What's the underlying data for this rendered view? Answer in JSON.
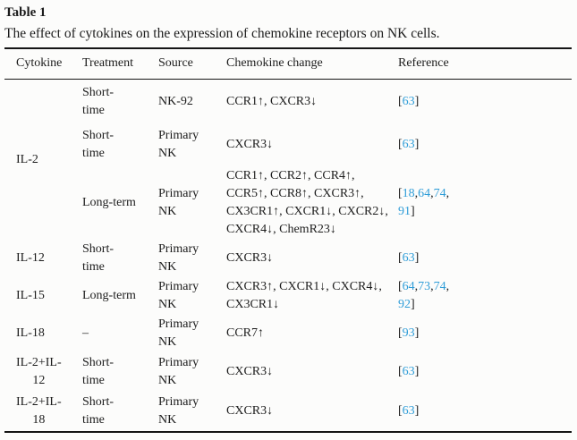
{
  "colors": {
    "text": "#1c1c1c",
    "citation_link": "#2f9dd8",
    "rule": "#151515",
    "background": "#fcfcfb"
  },
  "table": {
    "label": "Table 1",
    "caption": "The effect of cytokines on the expression of chemokine receptors on NK cells.",
    "columns": [
      "Cytokine",
      "Treatment",
      "Source",
      "Chemokine change",
      "Reference"
    ],
    "rows": [
      {
        "cytokine": "IL-2",
        "treatment": "Short-\ntime",
        "source": "NK-92",
        "change": "CCR1↑, CXCR3↓",
        "ref_lines": [
          [
            "63"
          ]
        ]
      },
      {
        "treatment": "Short-\ntime",
        "source": "Primary\nNK",
        "change": "CXCR3↓",
        "ref_lines": [
          [
            "63"
          ]
        ]
      },
      {
        "treatment": "Long-term",
        "source": "Primary\nNK",
        "change": "CCR1↑, CCR2↑, CCR4↑,\nCCR5↑, CCR8↑, CXCR3↑,\nCX3CR1↑, CXCR1↓, CXCR2↓,\nCXCR4↓, ChemR23↓",
        "ref_lines": [
          [
            "18",
            "64",
            "74"
          ],
          [
            "91"
          ]
        ]
      },
      {
        "cytokine": "IL-12",
        "treatment": "Short-\ntime",
        "source": "Primary\nNK",
        "change": "CXCR3↓",
        "ref_lines": [
          [
            "63"
          ]
        ]
      },
      {
        "cytokine": "IL-15",
        "treatment": "Long-term",
        "source": "Primary\nNK",
        "change": "CXCR3↑, CXCR1↓, CXCR4↓,\nCX3CR1↓",
        "ref_lines": [
          [
            "64",
            "73",
            "74"
          ],
          [
            "92"
          ]
        ]
      },
      {
        "cytokine": "IL-18",
        "treatment": "–",
        "source": "Primary\nNK",
        "change": "CCR7↑",
        "ref_lines": [
          [
            "93"
          ]
        ]
      },
      {
        "cytokine": "IL-2+IL-\n12",
        "treatment": "Short-\ntime",
        "source": "Primary\nNK",
        "change": "CXCR3↓",
        "ref_lines": [
          [
            "63"
          ]
        ]
      },
      {
        "cytokine": "IL-2+IL-\n18",
        "treatment": "Short-\ntime",
        "source": "Primary\nNK",
        "change": "CXCR3↓",
        "ref_lines": [
          [
            "63"
          ]
        ]
      }
    ]
  }
}
